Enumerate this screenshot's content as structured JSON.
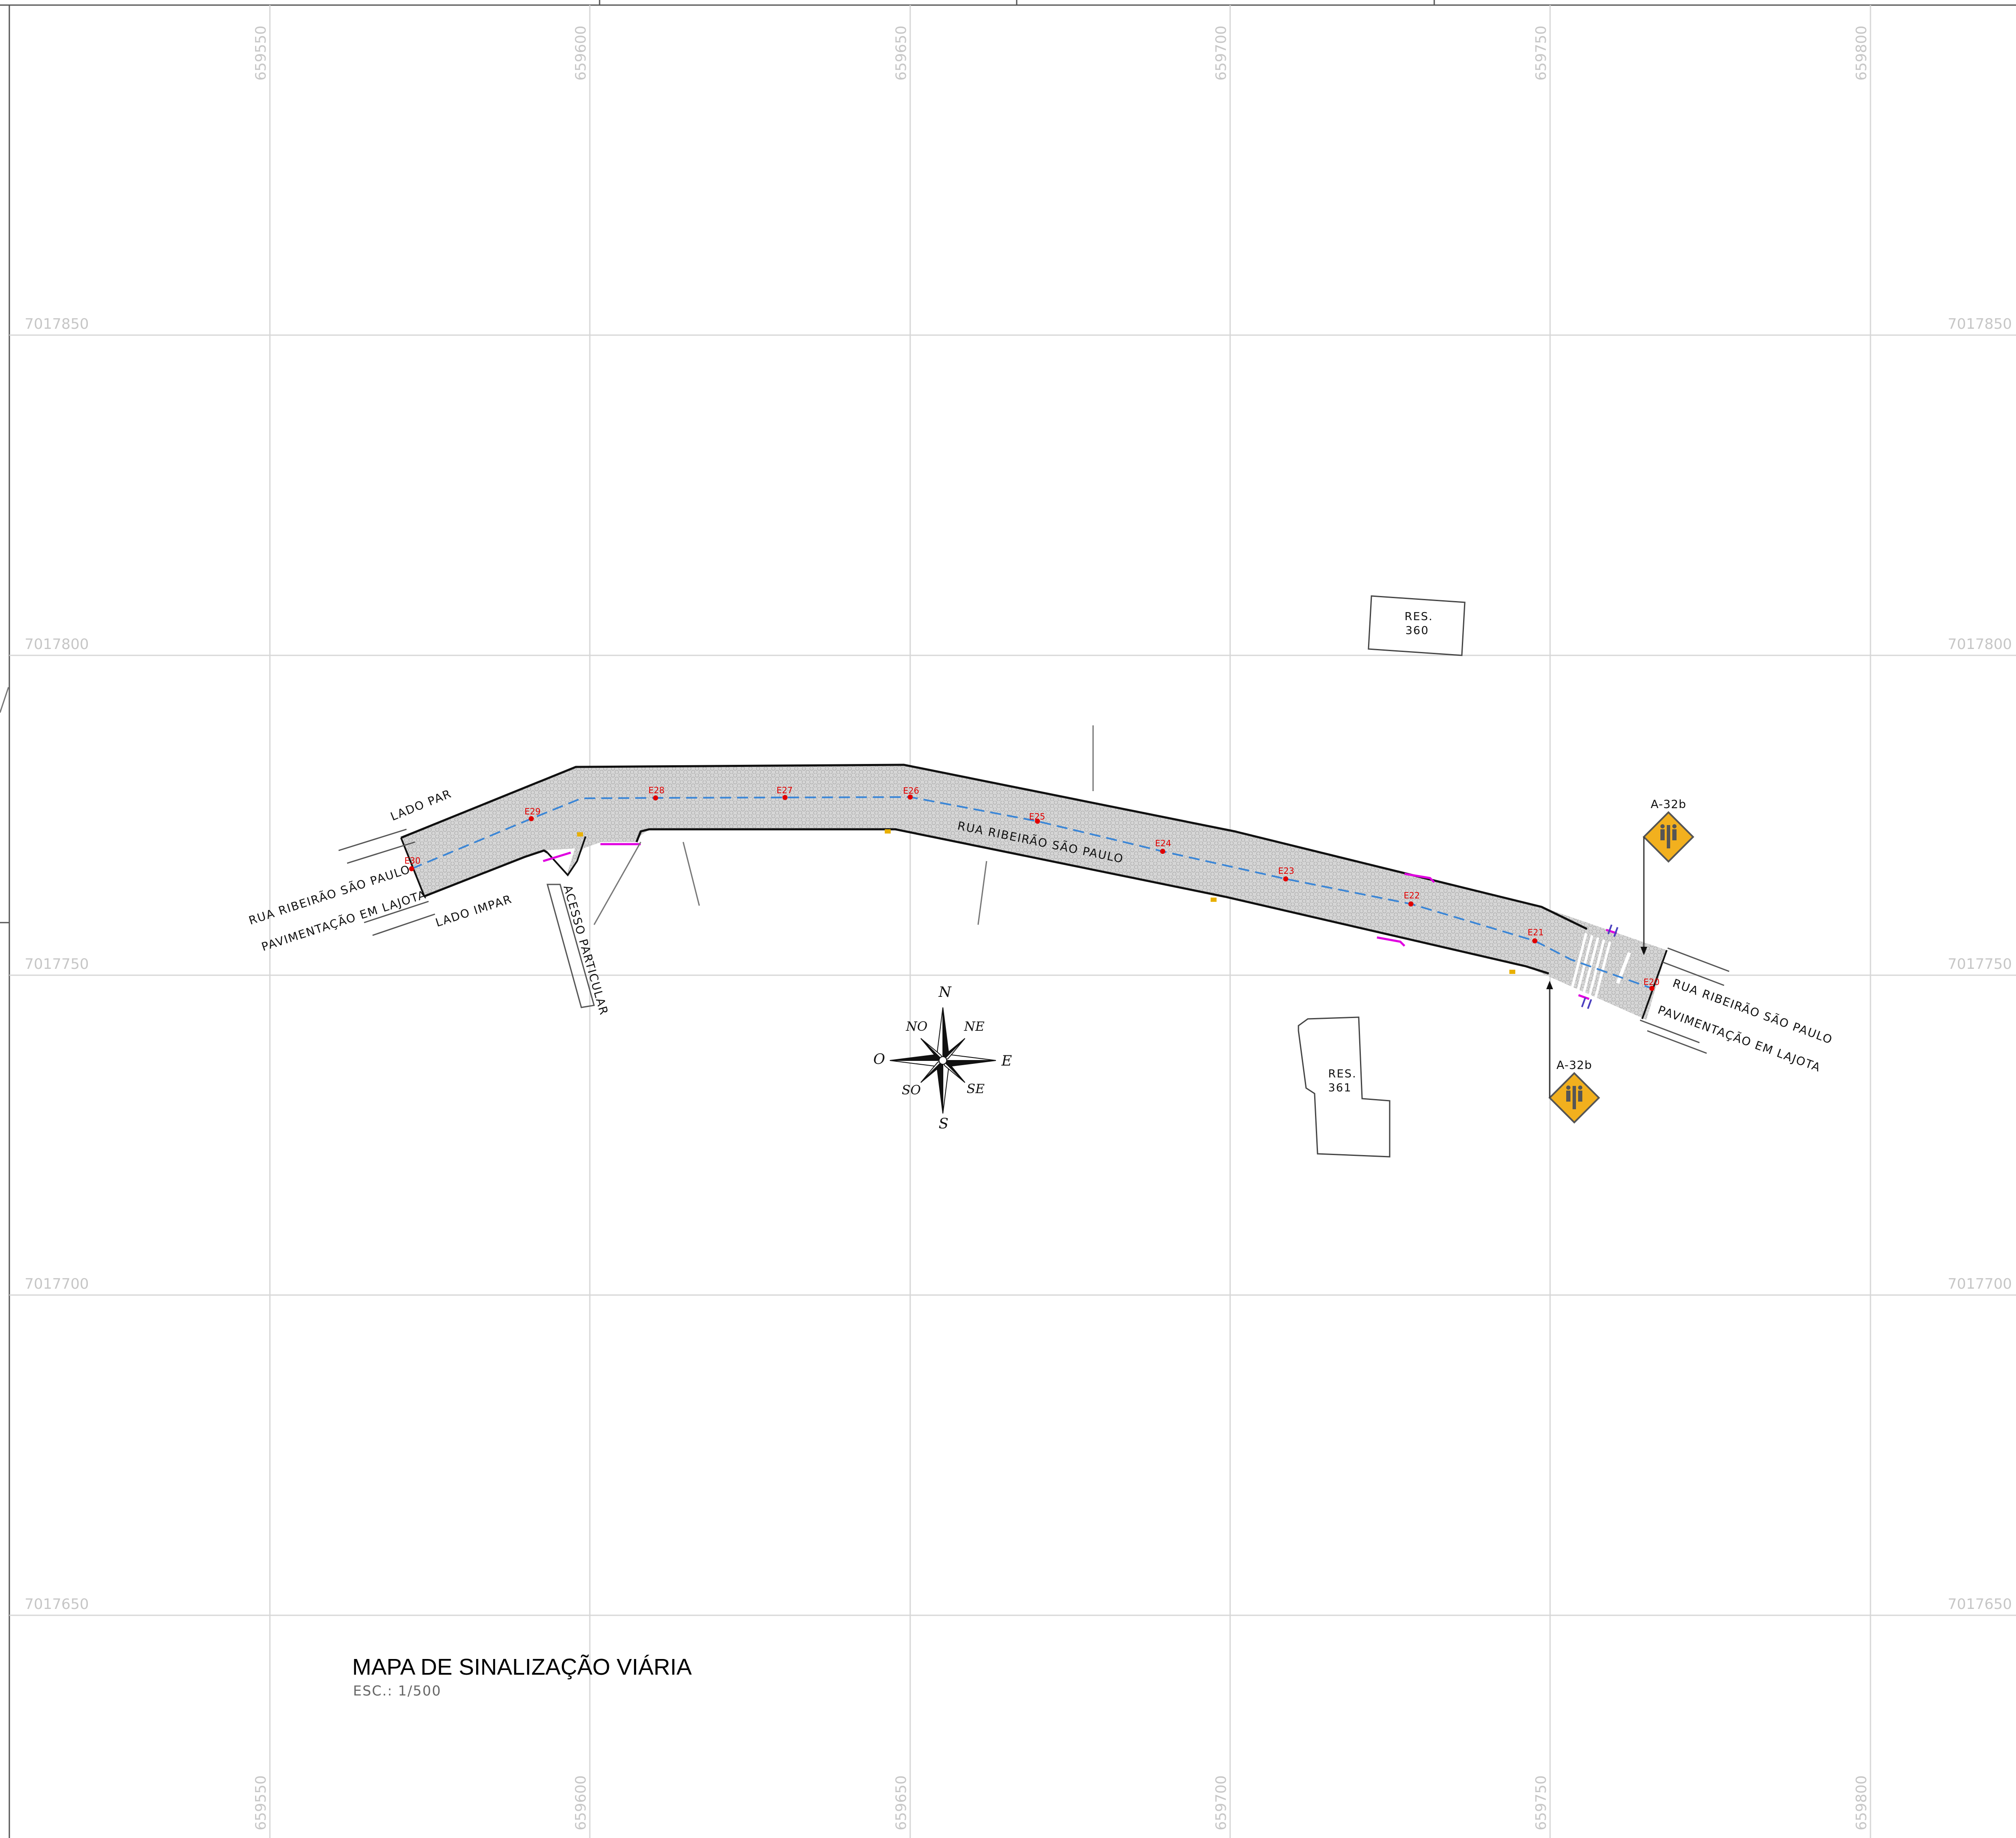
{
  "map": {
    "title": "MAPA DE SINALIZAÇÃO VIÁRIA",
    "scale": "ESC.: 1/500",
    "grid": {
      "eastings": [
        "659550",
        "659600",
        "659650",
        "659700",
        "659750",
        "659800"
      ],
      "northings": [
        "7017850",
        "7017800",
        "7017750",
        "7017700",
        "7017650"
      ]
    },
    "street": {
      "name_center": "RUA RIBEIRÃO SÃO PAULO",
      "name_west": "RUA RIBEIRÃO SÃO PAULO",
      "paving_west": "PAVIMENTAÇÃO EM LAJOTA",
      "name_east": "RUA RIBEIRÃO SÃO PAULO",
      "paving_east": "PAVIMENTAÇÃO EM LAJOTA",
      "side_even": "LADO PAR",
      "side_odd": "LADO IMPAR",
      "access": "ACESSO PARTICULAR",
      "stations": [
        "E20",
        "E21",
        "E22",
        "E23",
        "E24",
        "E25",
        "E26",
        "E27",
        "E28",
        "E29",
        "E30"
      ]
    },
    "buildings": [
      {
        "label": "RES.",
        "number": "360"
      },
      {
        "label": "RES.",
        "number": "361"
      }
    ],
    "signs": [
      {
        "code": "A-32b",
        "color": "#f2b01e"
      },
      {
        "code": "A-32b",
        "color": "#f2b01e"
      }
    ],
    "compass": {
      "n": "N",
      "ne": "NE",
      "e": "E",
      "se": "SE",
      "s": "S",
      "so": "SO",
      "o": "O",
      "no": "NO"
    },
    "colors": {
      "road": "#d3d3d3",
      "axis": "#3b86d6",
      "stations": "#e00000",
      "markings": "#e000e0",
      "sign": "#f2b01e"
    }
  }
}
